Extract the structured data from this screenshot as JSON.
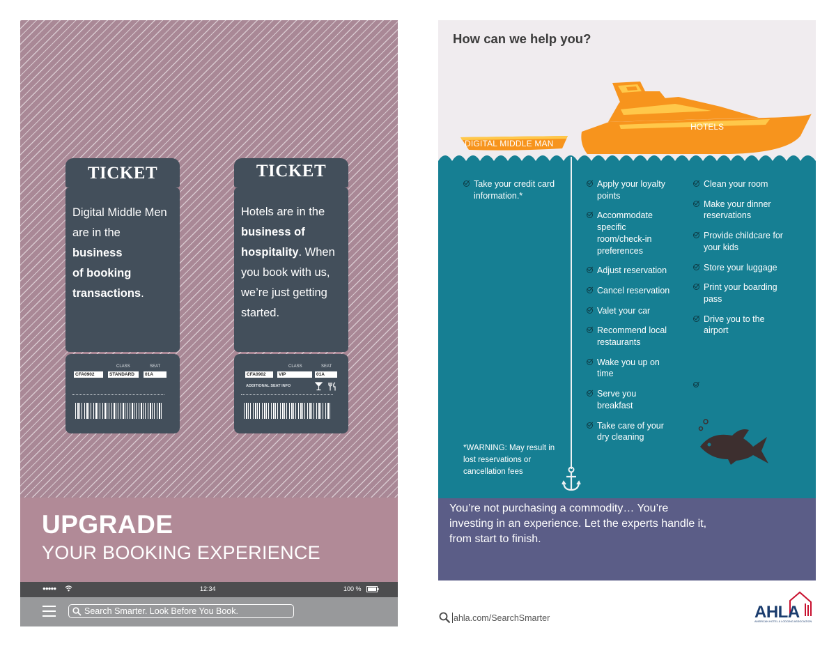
{
  "left": {
    "ticket1": {
      "heading": "TICKET",
      "line1": "Digital Middle Men",
      "line2_pre": "are in the ",
      "line2_bold": "business",
      "line3_bold": "of booking",
      "line4_bold": "transactions",
      "line4_post": ".",
      "stub": {
        "class_label": "CLASS",
        "seat_label": "SEAT",
        "code": "CFA0902",
        "class": "STANDARD",
        "seat": "01A"
      }
    },
    "ticket2": {
      "heading": "TICKET",
      "line1": "Hotels are in the",
      "line2_bold": "business of",
      "line3_bold": "hospitality",
      "line3_post": ". When",
      "line4": "you book with us,",
      "line5": "we’re just getting",
      "line6": "started.",
      "stub": {
        "class_label": "CLASS",
        "seat_label": "SEAT",
        "code": "CFA0902",
        "class": "VIP",
        "seat": "01A",
        "extra": "ADDITIONAL SEAT INFO"
      }
    },
    "upgrade_title": "UPGRADE",
    "upgrade_subtitle": "YOUR BOOKING EXPERIENCE",
    "status": {
      "signal": "●●●●●",
      "time": "12:34",
      "battery": "100 %"
    },
    "search_text": "Search Smarter. Look Before You Book."
  },
  "right": {
    "question": "How can we help you?",
    "small_boat_label": "DIGITAL MIDDLE MAN",
    "yacht_label": "HOTELS",
    "middleman_items": [
      "Take your credit card information.*"
    ],
    "hotel_items_col1": [
      "Apply your loyalty points",
      "Accommodate specific room/check-in preferences",
      "Adjust reservation",
      "Cancel reservation",
      "Valet your car",
      "Recommend local restaurants",
      "Wake you up on time",
      "Serve you breakfast",
      "Take care of your dry cleaning"
    ],
    "hotel_items_col2": [
      "Clean your room",
      "Make your dinner reservations",
      "Provide childcare for your kids",
      "Store your luggage",
      "Print your boarding pass",
      "Drive you to the airport"
    ],
    "warning": "*WARNING: May result in lost reservations or cancellation fees",
    "banner": "You’re not purchasing a commodity… You’re investing in an experience. Let the experts handle it, from start to finish."
  },
  "footer": {
    "url": "ahla.com/SearchSmarter",
    "logo_text": "AHLA",
    "logo_subtext": "AMERICAN HOTEL & LODGING ASSOCIATION"
  },
  "colors": {
    "stripe_bg": "#a98896",
    "ticket": "#434f5b",
    "upgrade_band": "#b18a97",
    "sea": "#167f93",
    "boat_orange": "#f7941d",
    "boat_yellow": "#ffc84a",
    "banner": "#5b5d87",
    "logo_blue": "#1b3d6e",
    "logo_red": "#c8102e"
  }
}
